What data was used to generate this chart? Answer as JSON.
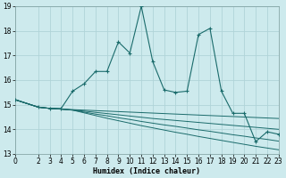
{
  "xlabel": "Humidex (Indice chaleur)",
  "xlim": [
    0,
    23
  ],
  "ylim": [
    13,
    19
  ],
  "yticks": [
    13,
    14,
    15,
    16,
    17,
    18,
    19
  ],
  "xticks": [
    0,
    2,
    3,
    4,
    5,
    6,
    7,
    8,
    9,
    10,
    11,
    12,
    13,
    14,
    15,
    16,
    17,
    18,
    19,
    20,
    21,
    22,
    23
  ],
  "bg_color": "#cdeaed",
  "grid_color": "#b0d4d8",
  "line_color": "#1a6b6b",
  "main_curve": {
    "x": [
      0,
      2,
      3,
      4,
      5,
      6,
      7,
      8,
      9,
      10,
      11,
      12,
      13,
      14,
      15,
      16,
      17,
      18,
      19,
      20,
      21,
      22,
      23
    ],
    "y": [
      15.2,
      14.9,
      14.85,
      14.85,
      15.55,
      15.85,
      16.35,
      16.35,
      17.55,
      17.1,
      19.0,
      16.75,
      15.6,
      15.5,
      15.55,
      17.85,
      18.1,
      15.55,
      14.65,
      14.65,
      13.5,
      13.9,
      13.8
    ]
  },
  "flat_curves": [
    {
      "x": [
        0,
        2,
        3,
        4,
        5,
        6,
        7,
        8,
        9,
        10,
        11,
        12,
        13,
        14,
        15,
        16,
        17,
        18,
        19,
        20,
        21,
        22,
        23
      ],
      "y": [
        15.2,
        14.9,
        14.85,
        14.82,
        14.8,
        14.78,
        14.76,
        14.74,
        14.72,
        14.7,
        14.68,
        14.66,
        14.64,
        14.62,
        14.6,
        14.58,
        14.56,
        14.54,
        14.52,
        14.5,
        14.48,
        14.46,
        14.44
      ]
    },
    {
      "x": [
        0,
        2,
        3,
        4,
        5,
        6,
        7,
        8,
        9,
        10,
        11,
        12,
        13,
        14,
        15,
        16,
        17,
        18,
        19,
        20,
        21,
        22,
        23
      ],
      "y": [
        15.2,
        14.9,
        14.85,
        14.82,
        14.79,
        14.74,
        14.69,
        14.64,
        14.59,
        14.54,
        14.49,
        14.44,
        14.4,
        14.36,
        14.32,
        14.28,
        14.24,
        14.2,
        14.16,
        14.12,
        14.08,
        14.04,
        14.0
      ]
    },
    {
      "x": [
        0,
        2,
        3,
        4,
        5,
        6,
        7,
        8,
        9,
        10,
        11,
        12,
        13,
        14,
        15,
        16,
        17,
        18,
        19,
        20,
        21,
        22,
        23
      ],
      "y": [
        15.2,
        14.9,
        14.85,
        14.82,
        14.78,
        14.7,
        14.62,
        14.55,
        14.47,
        14.4,
        14.32,
        14.25,
        14.18,
        14.12,
        14.05,
        13.98,
        13.92,
        13.85,
        13.78,
        13.72,
        13.65,
        13.59,
        13.52
      ]
    },
    {
      "x": [
        0,
        2,
        3,
        4,
        5,
        6,
        7,
        8,
        9,
        10,
        11,
        12,
        13,
        14,
        15,
        16,
        17,
        18,
        19,
        20,
        21,
        22,
        23
      ],
      "y": [
        15.2,
        14.9,
        14.85,
        14.82,
        14.78,
        14.67,
        14.56,
        14.45,
        14.35,
        14.25,
        14.15,
        14.06,
        13.97,
        13.88,
        13.8,
        13.71,
        13.63,
        13.55,
        13.47,
        13.39,
        13.31,
        13.24,
        13.17
      ]
    }
  ]
}
